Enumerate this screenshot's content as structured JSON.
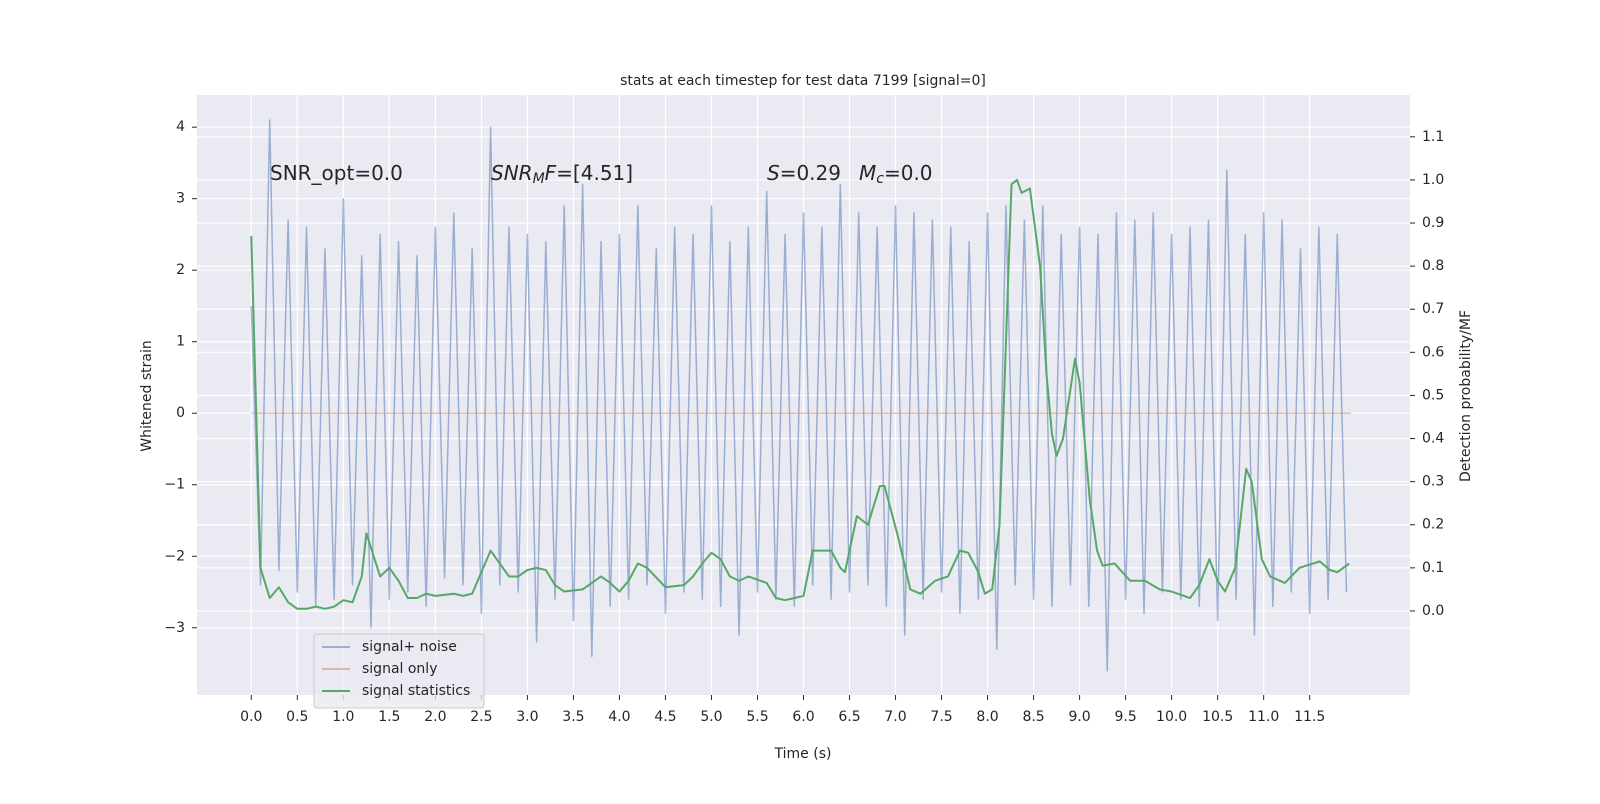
{
  "chart_data": {
    "type": "line",
    "title": "stats at each timestep for test data 7199 [signal=0]",
    "xlabel": "Time (s)",
    "ylabel": "Whitened strain",
    "y2label": "Detection probability/MF",
    "annotations": [
      [
        "SNR_opt=0.0"
      ],
      [
        "SNR",
        "M",
        "F",
        "=[4.51]"
      ],
      [
        "S",
        "=0.29"
      ],
      [
        "M",
        "c",
        "=0.0"
      ]
    ],
    "xlim": [
      -0.59,
      12.59
    ],
    "ylim": [
      -3.94,
      4.45
    ],
    "y2lim": [
      -0.195,
      1.197
    ],
    "xticks": [
      {
        "value": 0,
        "label": "0.0"
      },
      0.5,
      {
        "value": 1,
        "label": "1.0"
      },
      1.5,
      {
        "value": 2,
        "label": "2.0"
      },
      2.5,
      {
        "value": 3,
        "label": "3.0"
      },
      3.5,
      {
        "value": 4,
        "label": "4.0"
      },
      4.5,
      {
        "value": 5,
        "label": "5.0"
      },
      5.5,
      {
        "value": 6,
        "label": "6.0"
      },
      6.5,
      {
        "value": 7,
        "label": "7.0"
      },
      7.5,
      {
        "value": 8,
        "label": "8.0"
      },
      8.5,
      {
        "value": 9,
        "label": "9.0"
      },
      9.5,
      {
        "value": 10,
        "label": "10.0"
      },
      10.5,
      {
        "value": 11,
        "label": "11.0"
      },
      11.5
    ],
    "yticks": [
      {
        "value": -3,
        "label": "−3"
      },
      {
        "value": -2,
        "label": "−2"
      },
      {
        "value": -1,
        "label": "−1"
      },
      0,
      1,
      2,
      3,
      4
    ],
    "y2ticks": [
      {
        "value": 0,
        "label": "0.0"
      },
      0.1,
      0.2,
      0.3,
      0.4,
      0.5,
      0.6,
      0.7,
      0.8,
      0.9,
      {
        "value": 1,
        "label": "1.0"
      },
      1.1
    ],
    "grid": true,
    "legend": "lower left",
    "series": [
      {
        "name": "signal+ noise",
        "color": "#4c72b0",
        "alpha": 0.5,
        "x": [
          0,
          0.1,
          0.2,
          0.3,
          0.4,
          0.5,
          0.6,
          0.7,
          0.8,
          0.9,
          1,
          1.1,
          1.2,
          1.3,
          1.4,
          1.5,
          1.6,
          1.7,
          1.8,
          1.9,
          2,
          2.1,
          2.2,
          2.3,
          2.4,
          2.5,
          2.6,
          2.7,
          2.8,
          2.9,
          3,
          3.1,
          3.2,
          3.3,
          3.4,
          3.5,
          3.6,
          3.7,
          3.8,
          3.9,
          4,
          4.1,
          4.2,
          4.3,
          4.4,
          4.5,
          4.6,
          4.7,
          4.8,
          4.9,
          5,
          5.1,
          5.2,
          5.3,
          5.4,
          5.5,
          5.6,
          5.7,
          5.8,
          5.9,
          6,
          6.1,
          6.2,
          6.3,
          6.4,
          6.5,
          6.6,
          6.7,
          6.8,
          6.9,
          7,
          7.1,
          7.2,
          7.3,
          7.4,
          7.5,
          7.6,
          7.7,
          7.8,
          7.9,
          8,
          8.1,
          8.2,
          8.3,
          8.4,
          8.5,
          8.6,
          8.7,
          8.8,
          8.9,
          9,
          9.1,
          9.2,
          9.3,
          9.4,
          9.5,
          9.6,
          9.7,
          9.8,
          9.9,
          10,
          10.1,
          10.2,
          10.3,
          10.4,
          10.5,
          10.6,
          10.7,
          10.8,
          10.9,
          11,
          11.1,
          11.2,
          11.3,
          11.4,
          11.5,
          11.6,
          11.7,
          11.8,
          11.9
        ],
        "values": [
          1.5,
          -2.4,
          4.1,
          -2.2,
          2.7,
          -2.5,
          2.6,
          -2.7,
          2.3,
          -2.6,
          3.0,
          -2.4,
          2.2,
          -3.0,
          2.5,
          -2.6,
          2.4,
          -2.5,
          2.2,
          -2.7,
          2.6,
          -2.3,
          2.8,
          -2.4,
          2.3,
          -2.8,
          4.0,
          -2.4,
          2.6,
          -2.5,
          2.5,
          -3.2,
          2.4,
          -2.6,
          2.9,
          -2.9,
          3.2,
          -3.4,
          2.4,
          -2.7,
          2.5,
          -2.6,
          2.9,
          -2.4,
          2.3,
          -2.8,
          2.6,
          -2.5,
          2.5,
          -2.6,
          2.9,
          -2.7,
          2.4,
          -3.1,
          2.6,
          -2.5,
          3.1,
          -2.6,
          2.5,
          -2.7,
          2.8,
          -2.4,
          2.6,
          -2.6,
          3.2,
          -2.5,
          2.8,
          -2.4,
          2.6,
          -2.7,
          2.9,
          -3.1,
          2.8,
          -2.6,
          2.7,
          -2.5,
          2.6,
          -2.8,
          2.4,
          -2.6,
          2.8,
          -3.3,
          2.9,
          -2.4,
          2.7,
          -2.6,
          2.9,
          -2.7,
          2.5,
          -2.4,
          2.6,
          -2.7,
          2.5,
          -3.6,
          2.8,
          -2.6,
          2.7,
          -2.8,
          2.8,
          -2.5,
          2.5,
          -2.6,
          2.6,
          -2.7,
          2.7,
          -2.9,
          3.4,
          -2.6,
          2.5,
          -3.1,
          2.8,
          -2.7,
          2.7,
          -2.5,
          2.3,
          -2.8,
          2.6,
          -2.6,
          2.5,
          -2.5
        ]
      },
      {
        "name": "signal only",
        "color": "#dd8452",
        "alpha": 0.5,
        "x": [
          0,
          11.95
        ],
        "values": [
          0,
          0
        ]
      },
      {
        "name": "signal statistics",
        "color": "#55a868",
        "alpha": 1,
        "axis": "y2",
        "x": [
          0,
          0.1,
          0.2,
          0.3,
          0.4,
          0.5,
          0.6,
          0.7,
          0.8,
          0.9,
          1,
          1.1,
          1.2,
          1.25,
          1.4,
          1.5,
          1.6,
          1.7,
          1.8,
          1.9,
          2,
          2.2,
          2.3,
          2.4,
          2.5,
          2.6,
          2.7,
          2.8,
          2.9,
          3,
          3.1,
          3.2,
          3.3,
          3.4,
          3.6,
          3.7,
          3.8,
          3.9,
          4,
          4.1,
          4.2,
          4.3,
          4.5,
          4.7,
          4.8,
          4.9,
          5,
          5.1,
          5.2,
          5.3,
          5.4,
          5.6,
          5.7,
          5.8,
          6,
          6.1,
          6.3,
          6.4,
          6.45,
          6.58,
          6.7,
          6.83,
          6.88,
          7.03,
          7.16,
          7.27,
          7.43,
          7.57,
          7.7,
          7.79,
          7.9,
          7.97,
          8.05,
          8.13,
          8.26,
          8.32,
          8.37,
          8.46,
          8.57,
          8.64,
          8.7,
          8.75,
          8.82,
          8.95,
          9,
          9.11,
          9.19,
          9.25,
          9.38,
          9.55,
          9.71,
          9.87,
          10,
          10.2,
          10.3,
          10.41,
          10.5,
          10.58,
          10.69,
          10.81,
          10.87,
          10.98,
          11.07,
          11.23,
          11.39,
          11.61,
          11.72,
          11.8,
          11.93
        ],
        "values": [
          0.87,
          0.1,
          0.03,
          0.055,
          0.02,
          0.005,
          0.005,
          0.01,
          0.005,
          0.01,
          0.025,
          0.02,
          0.08,
          0.18,
          0.08,
          0.1,
          0.07,
          0.03,
          0.03,
          0.04,
          0.035,
          0.04,
          0.035,
          0.04,
          0.09,
          0.14,
          0.11,
          0.08,
          0.08,
          0.095,
          0.1,
          0.095,
          0.06,
          0.045,
          0.05,
          0.065,
          0.08,
          0.065,
          0.045,
          0.07,
          0.11,
          0.1,
          0.055,
          0.06,
          0.08,
          0.11,
          0.135,
          0.12,
          0.08,
          0.07,
          0.08,
          0.065,
          0.03,
          0.025,
          0.035,
          0.14,
          0.14,
          0.1,
          0.09,
          0.22,
          0.2,
          0.29,
          0.29,
          0.17,
          0.05,
          0.04,
          0.07,
          0.08,
          0.14,
          0.135,
          0.09,
          0.04,
          0.05,
          0.2,
          0.99,
          1.0,
          0.97,
          0.98,
          0.8,
          0.55,
          0.41,
          0.36,
          0.4,
          0.585,
          0.53,
          0.26,
          0.14,
          0.105,
          0.11,
          0.07,
          0.07,
          0.05,
          0.045,
          0.03,
          0.06,
          0.12,
          0.07,
          0.045,
          0.1,
          0.33,
          0.3,
          0.12,
          0.08,
          0.065,
          0.1,
          0.115,
          0.095,
          0.09,
          0.11
        ]
      }
    ]
  }
}
